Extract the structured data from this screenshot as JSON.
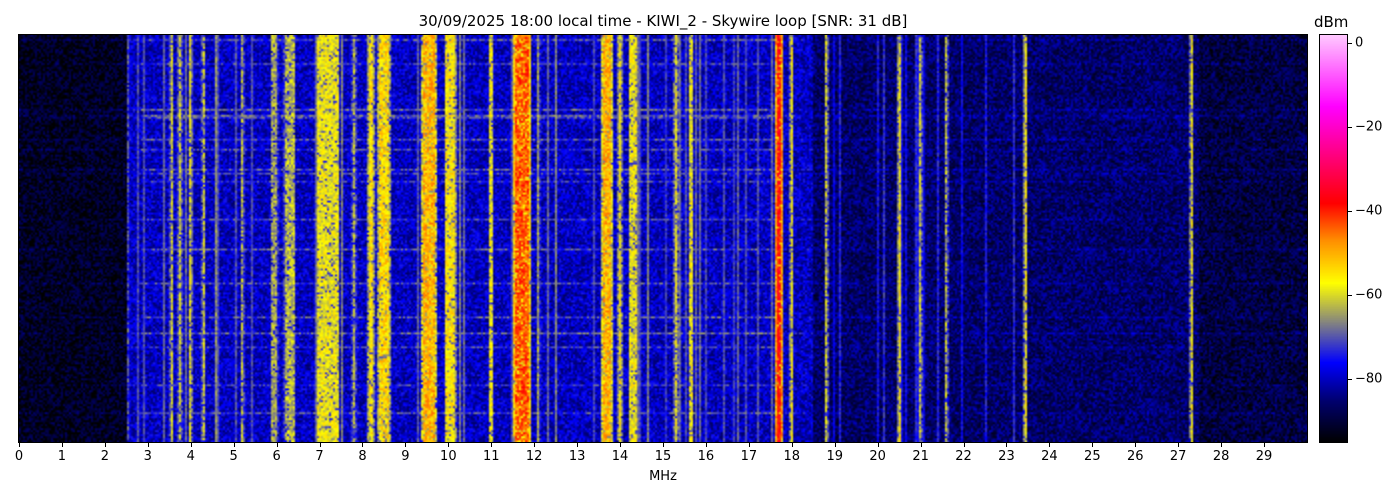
{
  "chart_data": {
    "type": "heatmap",
    "title": "30/09/2025 18:00 local time - KIWI_2 - Skywire loop [SNR: 31 dB]",
    "xlabel": "MHz",
    "ylabel": "",
    "xlim": [
      0,
      30
    ],
    "x_ticks": [
      "0",
      "1",
      "2",
      "3",
      "4",
      "5",
      "6",
      "7",
      "8",
      "9",
      "10",
      "11",
      "12",
      "13",
      "14",
      "15",
      "16",
      "17",
      "18",
      "19",
      "20",
      "21",
      "22",
      "23",
      "24",
      "25",
      "26",
      "27",
      "28",
      "29"
    ],
    "colorbar": {
      "label": "dBm",
      "range": [
        -95,
        2
      ],
      "ticks": [
        0,
        -20,
        -40,
        -60,
        -80
      ],
      "tick_labels": [
        "0",
        "−20",
        "−40",
        "−60",
        "−80"
      ],
      "colormap": [
        {
          "value": -95,
          "color": "#000000"
        },
        {
          "value": -85,
          "color": "#000070"
        },
        {
          "value": -76,
          "color": "#0000ff"
        },
        {
          "value": -66,
          "color": "#8a8a7a"
        },
        {
          "value": -57,
          "color": "#ffff00"
        },
        {
          "value": -47,
          "color": "#ff9000"
        },
        {
          "value": -38,
          "color": "#ff0000"
        },
        {
          "value": -15,
          "color": "#ff00ff"
        },
        {
          "value": 2,
          "color": "#ffc8ff"
        }
      ]
    },
    "noise_floor_dBm": [
      {
        "from_MHz": 0,
        "to_MHz": 2.5,
        "level": -92
      },
      {
        "from_MHz": 2.5,
        "to_MHz": 12.5,
        "level": -80
      },
      {
        "from_MHz": 12.5,
        "to_MHz": 18.5,
        "level": -80
      },
      {
        "from_MHz": 18.5,
        "to_MHz": 27.5,
        "level": -86
      },
      {
        "from_MHz": 27.5,
        "to_MHz": 30,
        "level": -89
      }
    ],
    "signals_dBm": [
      {
        "MHz": 2.55,
        "width": 0.04,
        "level": -70
      },
      {
        "MHz": 3.55,
        "width": 0.05,
        "level": -60
      },
      {
        "MHz": 3.75,
        "width": 0.05,
        "level": -60
      },
      {
        "MHz": 4.0,
        "width": 0.05,
        "level": -58
      },
      {
        "MHz": 4.3,
        "width": 0.04,
        "level": -60
      },
      {
        "MHz": 4.6,
        "width": 0.04,
        "level": -66
      },
      {
        "MHz": 5.2,
        "width": 0.05,
        "level": -62
      },
      {
        "MHz": 5.95,
        "width": 0.15,
        "level": -64
      },
      {
        "MHz": 6.3,
        "width": 0.25,
        "level": -62
      },
      {
        "MHz": 7.2,
        "width": 0.5,
        "level": -58
      },
      {
        "MHz": 7.8,
        "width": 0.05,
        "level": -62
      },
      {
        "MHz": 8.2,
        "width": 0.1,
        "level": -55
      },
      {
        "MHz": 8.5,
        "width": 0.25,
        "level": -54
      },
      {
        "MHz": 9.55,
        "width": 0.3,
        "level": -50
      },
      {
        "MHz": 10.05,
        "width": 0.25,
        "level": -56
      },
      {
        "MHz": 11.0,
        "width": 0.06,
        "level": -58
      },
      {
        "MHz": 11.72,
        "width": 0.35,
        "level": -43
      },
      {
        "MHz": 12.1,
        "width": 0.05,
        "level": -64
      },
      {
        "MHz": 13.7,
        "width": 0.2,
        "level": -50
      },
      {
        "MHz": 14.0,
        "width": 0.08,
        "level": -56
      },
      {
        "MHz": 14.3,
        "width": 0.15,
        "level": -58
      },
      {
        "MHz": 15.3,
        "width": 0.08,
        "level": -58
      },
      {
        "MHz": 15.65,
        "width": 0.08,
        "level": -58
      },
      {
        "MHz": 17.7,
        "width": 0.1,
        "level": -38
      },
      {
        "MHz": 18.0,
        "width": 0.05,
        "level": -57
      },
      {
        "MHz": 18.8,
        "width": 0.04,
        "level": -60
      },
      {
        "MHz": 20.5,
        "width": 0.05,
        "level": -56
      },
      {
        "MHz": 21.0,
        "width": 0.04,
        "level": -60
      },
      {
        "MHz": 21.6,
        "width": 0.04,
        "level": -62
      },
      {
        "MHz": 23.45,
        "width": 0.04,
        "level": -56
      },
      {
        "MHz": 27.3,
        "width": 0.05,
        "level": -58
      }
    ]
  }
}
